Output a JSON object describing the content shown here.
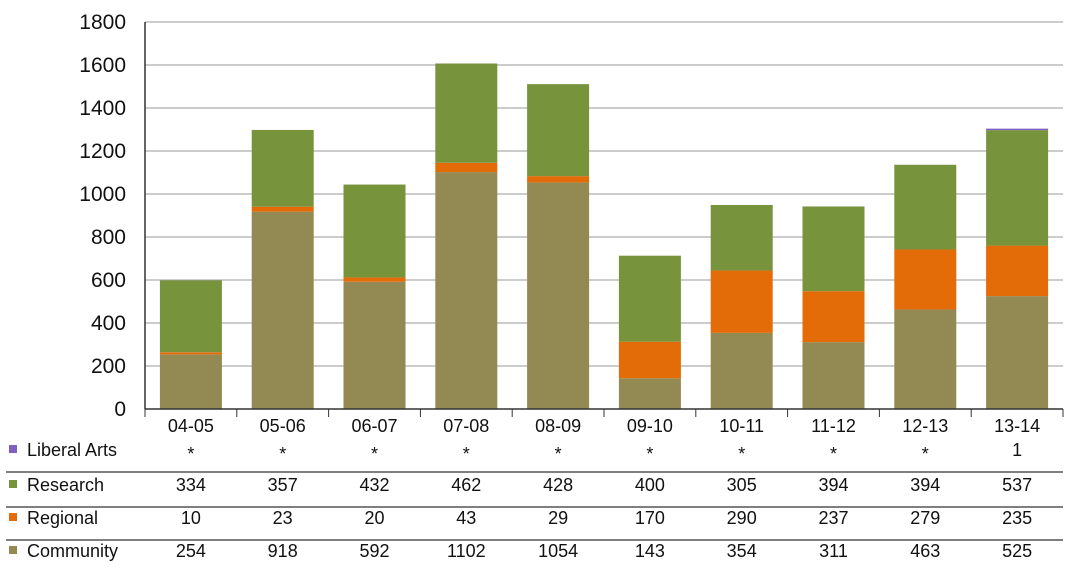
{
  "chart_data": {
    "type": "bar",
    "stacked": true,
    "categories": [
      "04-05",
      "05-06",
      "06-07",
      "07-08",
      "08-09",
      "09-10",
      "10-11",
      "11-12",
      "12-13",
      "13-14"
    ],
    "ylim": [
      0,
      1800
    ],
    "yticks": [
      "0",
      "200",
      "400",
      "600",
      "800",
      "1000",
      "1200",
      "1400",
      "1600",
      "1800"
    ],
    "grid": true,
    "series": [
      {
        "name": "Community",
        "color": "#938953",
        "values": [
          254,
          918,
          592,
          1102,
          1054,
          143,
          354,
          311,
          463,
          525
        ],
        "labels": [
          "254",
          "918",
          "592",
          "1102",
          "1054",
          "143",
          "354",
          "311",
          "463",
          "525"
        ]
      },
      {
        "name": "Regional",
        "color": "#e36c09",
        "values": [
          10,
          23,
          20,
          43,
          29,
          170,
          290,
          237,
          279,
          235
        ],
        "labels": [
          "10",
          "23",
          "20",
          "43",
          "29",
          "170",
          "290",
          "237",
          "279",
          "235"
        ]
      },
      {
        "name": "Research",
        "color": "#77933c",
        "values": [
          334,
          357,
          432,
          462,
          428,
          400,
          305,
          394,
          394,
          537
        ],
        "labels": [
          "334",
          "357",
          "432",
          "462",
          "428",
          "400",
          "305",
          "394",
          "394",
          "537"
        ]
      },
      {
        "name": "Liberal Arts",
        "color": "#7f5fc0",
        "values": [
          0,
          0,
          0,
          0,
          0,
          0,
          0,
          0,
          0,
          1
        ],
        "labels": [
          "*",
          "*",
          "*",
          "*",
          "*",
          "*",
          "*",
          "*",
          "*",
          "1"
        ]
      }
    ],
    "table_row_order": [
      "Liberal Arts",
      "Research",
      "Regional",
      "Community"
    ]
  }
}
